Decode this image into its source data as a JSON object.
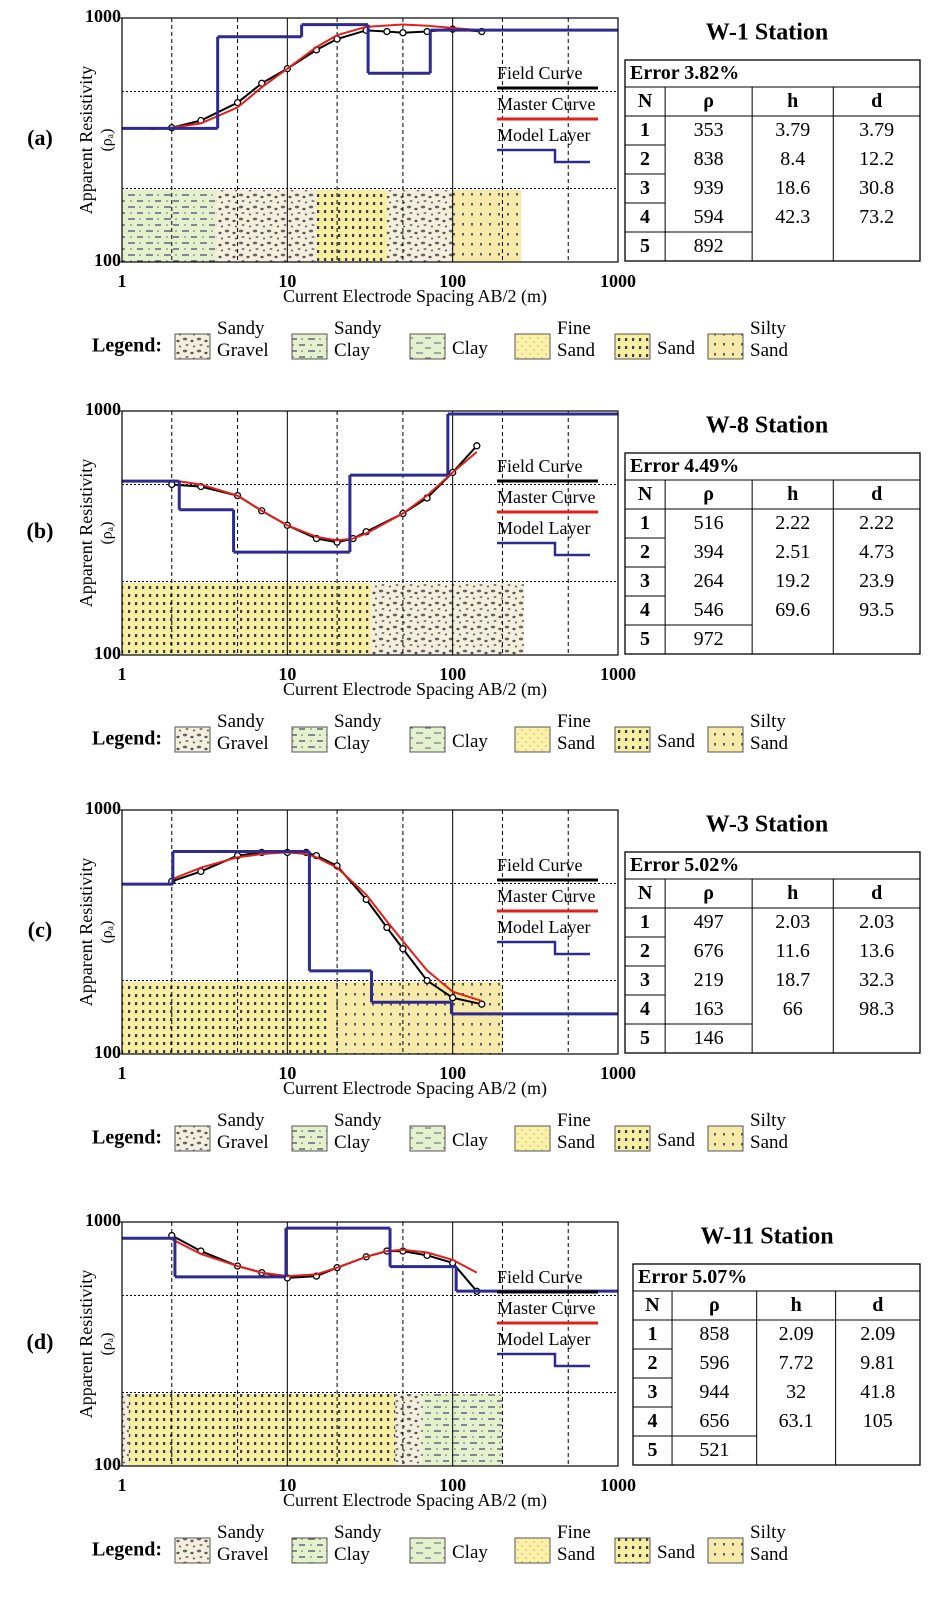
{
  "chart_data": [
    {
      "type": "line",
      "label": "(a)",
      "title": "W-1 Station",
      "xlabel": "Current Electrode Spacing AB/2 (m)",
      "ylabel": "Apparent Resistivity",
      "ylabel_sub": "(ρₐ)",
      "log_x": true,
      "log_y": true,
      "xlim": [
        1,
        1000
      ],
      "ylim": [
        100,
        1000
      ],
      "xticks": [
        1,
        10,
        100,
        1000
      ],
      "yticks": [
        100,
        1000
      ],
      "xgrid": [
        2,
        5,
        20,
        50,
        200,
        500
      ],
      "ygrid": [
        200,
        500
      ],
      "series": [
        {
          "name": "Field Curve",
          "color": "#000000",
          "markers": true,
          "x": [
            2,
            3,
            5,
            7,
            10,
            15,
            20,
            30,
            40,
            50,
            70,
            100,
            150
          ],
          "values": [
            355,
            380,
            450,
            540,
            620,
            740,
            820,
            890,
            880,
            870,
            880,
            900,
            880
          ]
        },
        {
          "name": "Master Curve",
          "color": "#e0201b",
          "x": [
            1.5,
            2,
            3,
            5,
            7,
            10,
            15,
            20,
            30,
            50,
            70,
            100,
            150
          ],
          "values": [
            350,
            355,
            370,
            430,
            520,
            620,
            760,
            850,
            920,
            940,
            930,
            910,
            890
          ]
        },
        {
          "name": "Model Layer",
          "color": "#2e2a8f"
        }
      ],
      "lithology": [
        {
          "type": "Sandy Clay",
          "x": [
            1,
            3.7
          ]
        },
        {
          "type": "Sandy Gravel",
          "x": [
            3.7,
            15
          ]
        },
        {
          "type": "Sand",
          "x": [
            15,
            40
          ]
        },
        {
          "type": "Sandy Gravel",
          "x": [
            40,
            100
          ]
        },
        {
          "type": "Silty Sand",
          "x": [
            100,
            260
          ]
        }
      ],
      "table": {
        "error": "Error 3.82%",
        "columns": [
          "N",
          "ρ",
          "h",
          "d"
        ],
        "rows": [
          [
            1,
            353,
            3.79,
            3.79
          ],
          [
            2,
            838,
            8.4,
            12.2
          ],
          [
            3,
            939,
            18.6,
            30.8
          ],
          [
            4,
            594,
            42.3,
            73.2
          ],
          [
            5,
            892
          ]
        ]
      }
    },
    {
      "type": "line",
      "label": "(b)",
      "title": "W-8 Station",
      "xlabel": "Current Electrode Spacing AB/2 (m)",
      "ylabel": "Apparent Resistivity",
      "ylabel_sub": "(ρₐ)",
      "log_x": true,
      "log_y": true,
      "xlim": [
        1,
        1000
      ],
      "ylim": [
        100,
        1000
      ],
      "xticks": [
        1,
        10,
        100,
        1000
      ],
      "yticks": [
        100,
        1000
      ],
      "xgrid": [
        2,
        5,
        20,
        50,
        200,
        500
      ],
      "ygrid": [
        200,
        500
      ],
      "series": [
        {
          "name": "Field Curve",
          "color": "#000000",
          "markers": true,
          "x": [
            2,
            3,
            5,
            7,
            10,
            15,
            20,
            25,
            30,
            50,
            70,
            100,
            140
          ],
          "values": [
            500,
            490,
            450,
            390,
            340,
            300,
            290,
            300,
            320,
            380,
            440,
            560,
            720
          ]
        },
        {
          "name": "Master Curve",
          "color": "#e0201b",
          "x": [
            2,
            3,
            5,
            7,
            10,
            15,
            20,
            25,
            30,
            50,
            70,
            100,
            140
          ],
          "values": [
            520,
            500,
            450,
            390,
            340,
            305,
            295,
            300,
            315,
            380,
            450,
            560,
            680
          ]
        },
        {
          "name": "Model Layer",
          "color": "#2e2a8f"
        }
      ],
      "lithology": [
        {
          "type": "Sand",
          "x": [
            1,
            32
          ]
        },
        {
          "type": "Sandy Gravel",
          "x": [
            32,
            270
          ]
        }
      ],
      "table": {
        "error": "Error 4.49%",
        "columns": [
          "N",
          "ρ",
          "h",
          "d"
        ],
        "rows": [
          [
            1,
            516,
            2.22,
            2.22
          ],
          [
            2,
            394,
            2.51,
            4.73
          ],
          [
            3,
            264,
            19.2,
            23.9
          ],
          [
            4,
            546,
            69.6,
            93.5
          ],
          [
            5,
            972
          ]
        ]
      }
    },
    {
      "type": "line",
      "label": "(c)",
      "title": "W-3 Station",
      "xlabel": "Current Electrode Spacing AB/2 (m)",
      "ylabel": "Apparent Resistivity",
      "ylabel_sub": "(ρₐ)",
      "log_x": true,
      "log_y": true,
      "xlim": [
        1,
        1000
      ],
      "ylim": [
        100,
        1000
      ],
      "xticks": [
        1,
        10,
        100,
        1000
      ],
      "yticks": [
        100,
        1000
      ],
      "xgrid": [
        2,
        5,
        20,
        50,
        200,
        500
      ],
      "ygrid": [
        200,
        500
      ],
      "series": [
        {
          "name": "Field Curve",
          "color": "#000000",
          "markers": true,
          "x": [
            2,
            3,
            5,
            7,
            10,
            13,
            15,
            20,
            30,
            40,
            50,
            70,
            100,
            150
          ],
          "values": [
            510,
            560,
            650,
            670,
            670,
            670,
            650,
            590,
            430,
            330,
            270,
            200,
            170,
            160
          ]
        },
        {
          "name": "Master Curve",
          "color": "#e0201b",
          "x": [
            2,
            3,
            5,
            7,
            10,
            13,
            15,
            20,
            30,
            40,
            50,
            70,
            100,
            150
          ],
          "values": [
            520,
            580,
            640,
            660,
            670,
            660,
            640,
            580,
            450,
            350,
            290,
            220,
            180,
            165
          ]
        },
        {
          "name": "Model Layer",
          "color": "#2e2a8f"
        }
      ],
      "lithology": [
        {
          "type": "Sand",
          "x": [
            1,
            18
          ]
        },
        {
          "type": "Silty Sand",
          "x": [
            18,
            200
          ]
        }
      ],
      "table": {
        "error": "Error 5.02%",
        "columns": [
          "N",
          "ρ",
          "h",
          "d"
        ],
        "rows": [
          [
            1,
            497,
            2.03,
            2.03
          ],
          [
            2,
            676,
            11.6,
            13.6
          ],
          [
            3,
            219,
            18.7,
            32.3
          ],
          [
            4,
            163,
            66,
            98.3
          ],
          [
            5,
            146
          ]
        ]
      }
    },
    {
      "type": "line",
      "label": "(d)",
      "title": "W-11 Station",
      "xlabel": "Current Electrode Spacing AB/2 (m)",
      "ylabel": "Apparent Resistivity",
      "ylabel_sub": "(ρₐ)",
      "log_x": true,
      "log_y": true,
      "xlim": [
        1,
        1000
      ],
      "ylim": [
        100,
        1000
      ],
      "xticks": [
        1,
        10,
        100,
        1000
      ],
      "yticks": [
        100,
        1000
      ],
      "xgrid": [
        2,
        5,
        20,
        50,
        200,
        500
      ],
      "ygrid": [
        200,
        500
      ],
      "series": [
        {
          "name": "Field Curve",
          "color": "#000000",
          "markers": true,
          "x": [
            2,
            3,
            5,
            7,
            10,
            15,
            20,
            30,
            40,
            50,
            70,
            100,
            140
          ],
          "values": [
            880,
            760,
            660,
            620,
            590,
            600,
            650,
            720,
            760,
            760,
            730,
            680,
            520
          ]
        },
        {
          "name": "Master Curve",
          "color": "#e0201b",
          "x": [
            2,
            3,
            5,
            7,
            10,
            15,
            20,
            30,
            40,
            50,
            70,
            100,
            140
          ],
          "values": [
            850,
            740,
            660,
            620,
            600,
            610,
            650,
            720,
            760,
            770,
            750,
            700,
            620
          ]
        },
        {
          "name": "Model Layer",
          "color": "#2e2a8f"
        }
      ],
      "lithology": [
        {
          "type": "Sandy Gravel",
          "x": [
            1,
            1.1
          ]
        },
        {
          "type": "Sand",
          "x": [
            1.1,
            45
          ]
        },
        {
          "type": "Sandy Gravel",
          "x": [
            45,
            65
          ]
        },
        {
          "type": "Sandy Clay",
          "x": [
            65,
            200
          ]
        }
      ],
      "table": {
        "error": "Error 5.07%",
        "columns": [
          "N",
          "ρ",
          "h",
          "d"
        ],
        "rows": [
          [
            1,
            858,
            2.09,
            2.09
          ],
          [
            2,
            596,
            7.72,
            9.81
          ],
          [
            3,
            944,
            32,
            41.8
          ],
          [
            4,
            656,
            63.1,
            105
          ],
          [
            5,
            521
          ]
        ]
      }
    }
  ],
  "legend": {
    "title": "Legend:",
    "items": [
      "Sandy Gravel",
      "Sandy Clay",
      "Clay",
      "Fine Sand",
      "Sand",
      "Silty Sand"
    ]
  }
}
